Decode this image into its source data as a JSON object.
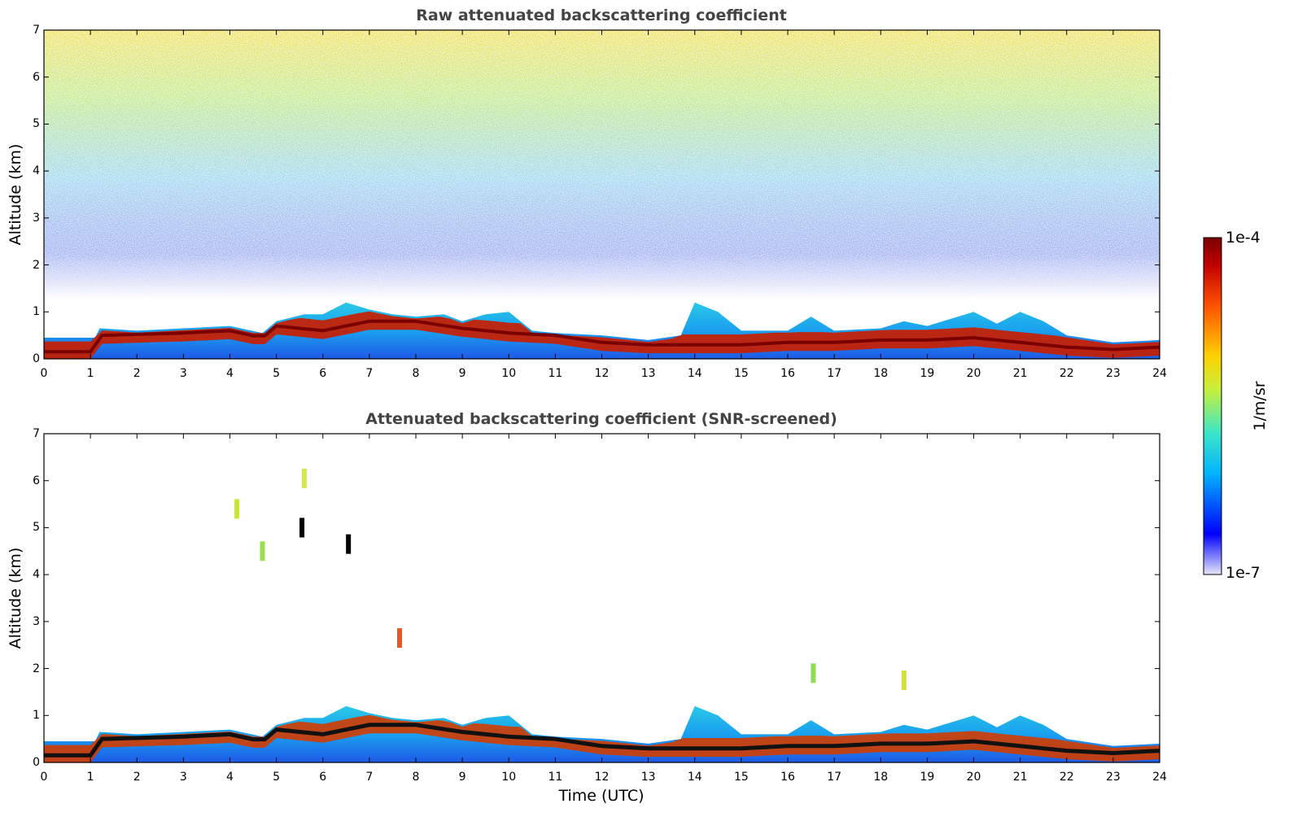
{
  "chart_data": [
    {
      "type": "heatmap",
      "title": "Raw attenuated backscattering coefficient",
      "xlabel": "",
      "ylabel": "Altitude (km)",
      "xlim": [
        0,
        24
      ],
      "ylim": [
        0,
        7
      ],
      "x_ticks": [
        "0",
        "1",
        "2",
        "3",
        "4",
        "5",
        "6",
        "7",
        "8",
        "9",
        "10",
        "11",
        "12",
        "13",
        "14",
        "15",
        "16",
        "17",
        "18",
        "19",
        "20",
        "21",
        "22",
        "23",
        "24"
      ],
      "y_ticks": [
        "0",
        "1",
        "2",
        "3",
        "4",
        "5",
        "6",
        "7"
      ],
      "boundary_layer_top_km": [
        [
          0,
          0.45
        ],
        [
          1.1,
          0.45
        ],
        [
          1.2,
          0.65
        ],
        [
          2,
          0.6
        ],
        [
          3,
          0.65
        ],
        [
          4,
          0.7
        ],
        [
          4.7,
          0.55
        ],
        [
          5,
          0.8
        ],
        [
          5.6,
          0.95
        ],
        [
          6,
          0.95
        ],
        [
          6.5,
          1.2
        ],
        [
          7,
          1.05
        ],
        [
          7.5,
          0.95
        ],
        [
          8,
          0.9
        ],
        [
          8.6,
          0.95
        ],
        [
          9,
          0.8
        ],
        [
          9.5,
          0.95
        ],
        [
          10,
          1.0
        ],
        [
          10.5,
          0.6
        ],
        [
          11,
          0.55
        ],
        [
          12,
          0.5
        ],
        [
          12.5,
          0.45
        ],
        [
          13,
          0.4
        ],
        [
          13.7,
          0.5
        ],
        [
          14,
          1.2
        ],
        [
          14.5,
          1.0
        ],
        [
          15,
          0.6
        ],
        [
          16,
          0.6
        ],
        [
          16.5,
          0.9
        ],
        [
          17,
          0.6
        ],
        [
          18,
          0.65
        ],
        [
          18.5,
          0.8
        ],
        [
          19,
          0.7
        ],
        [
          20,
          1.0
        ],
        [
          20.5,
          0.75
        ],
        [
          21,
          1.0
        ],
        [
          21.5,
          0.8
        ],
        [
          22,
          0.5
        ],
        [
          23,
          0.35
        ],
        [
          24,
          0.4
        ]
      ],
      "high_signal_layer_km": [
        [
          0,
          0.15
        ],
        [
          1,
          0.15
        ],
        [
          1.2,
          0.5
        ],
        [
          3,
          0.55
        ],
        [
          4,
          0.6
        ],
        [
          4.7,
          0.45
        ],
        [
          5,
          0.7
        ],
        [
          6,
          0.6
        ],
        [
          7,
          0.8
        ],
        [
          8,
          0.8
        ],
        [
          9,
          0.65
        ],
        [
          10,
          0.55
        ],
        [
          11,
          0.5
        ],
        [
          12,
          0.35
        ],
        [
          13,
          0.3
        ],
        [
          14,
          0.3
        ],
        [
          15,
          0.3
        ],
        [
          16,
          0.35
        ],
        [
          17,
          0.35
        ],
        [
          18,
          0.4
        ],
        [
          19,
          0.4
        ],
        [
          20,
          0.45
        ],
        [
          21,
          0.35
        ],
        [
          22,
          0.25
        ],
        [
          23,
          0.2
        ],
        [
          24,
          0.25
        ]
      ]
    },
    {
      "type": "heatmap",
      "title": "Attenuated backscattering coefficient (SNR-screened)",
      "xlabel": "Time (UTC)",
      "ylabel": "Altitude (km)",
      "xlim": [
        0,
        24
      ],
      "ylim": [
        0,
        7
      ],
      "x_ticks": [
        "0",
        "1",
        "2",
        "3",
        "4",
        "5",
        "6",
        "7",
        "8",
        "9",
        "10",
        "11",
        "12",
        "13",
        "14",
        "15",
        "16",
        "17",
        "18",
        "19",
        "20",
        "21",
        "22",
        "23",
        "24"
      ],
      "y_ticks": [
        "0",
        "1",
        "2",
        "3",
        "4",
        "5",
        "6",
        "7"
      ],
      "isolated_features": [
        {
          "time": 4.15,
          "alt": 5.4,
          "color": "#c8e832"
        },
        {
          "time": 4.7,
          "alt": 4.5,
          "color": "#9be04a"
        },
        {
          "time": 5.6,
          "alt": 6.05,
          "color": "#d4e84a"
        },
        {
          "time": 5.55,
          "alt": 5.0,
          "color": "#000000"
        },
        {
          "time": 6.55,
          "alt": 4.65,
          "color": "#000000"
        },
        {
          "time": 7.65,
          "alt": 2.65,
          "color": "#e05a2a"
        },
        {
          "time": 16.55,
          "alt": 1.9,
          "color": "#8fdc5a"
        },
        {
          "time": 18.5,
          "alt": 1.75,
          "color": "#d6e03c"
        }
      ]
    }
  ],
  "colorbar": {
    "max_label": "1e-4",
    "min_label": "1e-7",
    "unit": "1/m/sr",
    "colors": [
      "#e6e6fa",
      "#0000ff",
      "#00b4ff",
      "#3ce6c8",
      "#c8f03c",
      "#ffd000",
      "#ff5000",
      "#c00000",
      "#7a0000"
    ]
  }
}
